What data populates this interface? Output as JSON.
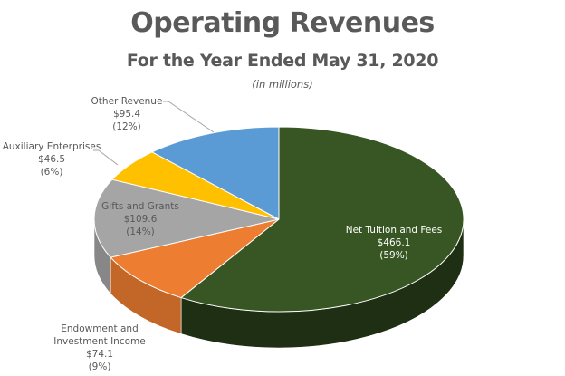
{
  "chart_data": {
    "type": "pie",
    "style": "3d",
    "title": "Operating Revenues",
    "subtitle": "For the Year Ended May 31, 2020",
    "note": "(in millions)",
    "categories": [
      "Net Tuition and Fees",
      "Endowment and Investment Income",
      "Gifts and Grants",
      "Auxiliary Enterprises",
      "Other Revenue"
    ],
    "values": [
      466.1,
      74.1,
      109.6,
      46.5,
      95.4
    ],
    "percentages": [
      59,
      9,
      14,
      6,
      12
    ],
    "value_labels": [
      "$466.1",
      "$74.1",
      "$109.6",
      "$46.5",
      "$95.4"
    ],
    "percent_labels": [
      "(59%)",
      "(9%)",
      "(14%)",
      "(6%)",
      "(12%)"
    ],
    "colors": [
      "#375623",
      "#ED7D31",
      "#A5A5A5",
      "#FFC000",
      "#5B9BD5"
    ],
    "legend": "none"
  },
  "slices": [
    {
      "name": "Net Tuition and Fees",
      "value": "$466.1",
      "pct": "(59%)"
    },
    {
      "name_line1": "Endowment and",
      "name_line2": "Investment Income",
      "value": "$74.1",
      "pct": "(9%)"
    },
    {
      "name": "Gifts and Grants",
      "value": "$109.6",
      "pct": "(14%)"
    },
    {
      "name": "Auxiliary Enterprises",
      "value": "$46.5",
      "pct": "(6%)"
    },
    {
      "name": "Other Revenue",
      "value": "$95.4",
      "pct": "(12%)"
    }
  ]
}
